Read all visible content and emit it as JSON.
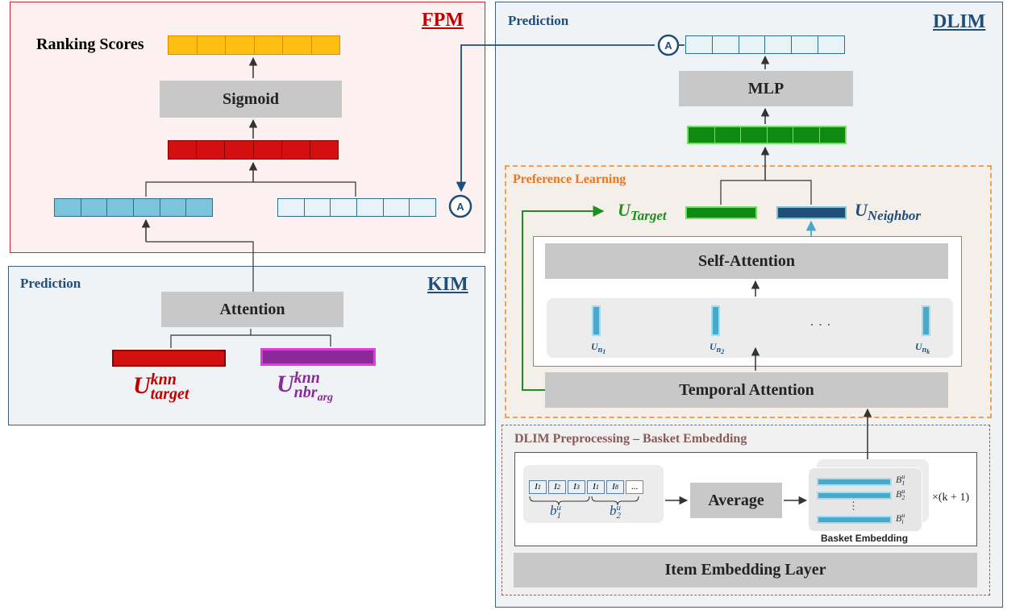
{
  "fpm": {
    "title": "FPM",
    "ranking_label": "Ranking Scores",
    "sigmoid_label": "Sigmoid",
    "connector_label": "A"
  },
  "kim": {
    "title": "KIM",
    "section_label": "Prediction",
    "attention_label": "Attention",
    "u_target_main": "U",
    "u_target_sup": "knn",
    "u_target_sub": "target",
    "u_nbr_main": "U",
    "u_nbr_sup": "knn",
    "u_nbr_sub": "nbr",
    "u_nbr_subsub": "arg"
  },
  "dlim": {
    "title": "DLIM",
    "section_label": "Prediction",
    "mlp_label": "MLP",
    "connector_label": "A",
    "preference": {
      "title": "Preference Learning",
      "u_target_main": "U",
      "u_target_sub": "Target",
      "u_neighbor_main": "U",
      "u_neighbor_sub": "Neighbor",
      "self_attention_label": "Self-Attention",
      "temporal_attention_label": "Temporal Attention",
      "neighbors": [
        {
          "main": "U",
          "sub": "n",
          "subsub": "1"
        },
        {
          "main": "U",
          "sub": "n",
          "subsub": "2"
        },
        {
          "main": "U",
          "sub": "n",
          "subsub": "k"
        }
      ],
      "ellipsis": "· · ·"
    },
    "preprocessing": {
      "title": "DLIM Preprocessing – Basket Embedding",
      "items": [
        {
          "main": "I",
          "sub": "1"
        },
        {
          "main": "I",
          "sub": "2"
        },
        {
          "main": "I",
          "sub": "3"
        },
        {
          "main": "I",
          "sub": "1"
        },
        {
          "main": "I",
          "sub": "8"
        }
      ],
      "item_ellipsis": "...",
      "basket1_main": "b",
      "basket1_sup": "u",
      "basket1_sub": "1",
      "basket2_main": "b",
      "basket2_sup": "u",
      "basket2_sub": "2",
      "average_label": "Average",
      "basket_embeddings": [
        {
          "main": "B",
          "sup": "u",
          "sub": "1"
        },
        {
          "main": "B",
          "sup": "u",
          "sub": "2"
        },
        {
          "main": "B",
          "sup": "u",
          "sub": "i"
        }
      ],
      "basket_ellipsis": "⋮",
      "basket_embedding_label": "Basket Embedding",
      "multiplier": "×(k + 1)",
      "item_embedding_layer_label": "Item Embedding Layer"
    }
  },
  "colors": {
    "fpm_bg": "#fcf0f0",
    "fpm_border": "#cc2a2a",
    "kim_bg": "#f0f3f6",
    "kim_border": "#3c5f7e",
    "orange_vec": "#fdbf12",
    "red_vec": "#d40f0f",
    "blue_vec": "#7cc3dc",
    "light_blue_vec": "#e8f3f8",
    "green_vec": "#0e8a12",
    "magenta": "#e03cdb",
    "purple": "#8a2a9a",
    "dark_red": "#c00000",
    "navy": "#1f4e79",
    "green_text": "#1e8f1e",
    "orange_text": "#e87722"
  }
}
